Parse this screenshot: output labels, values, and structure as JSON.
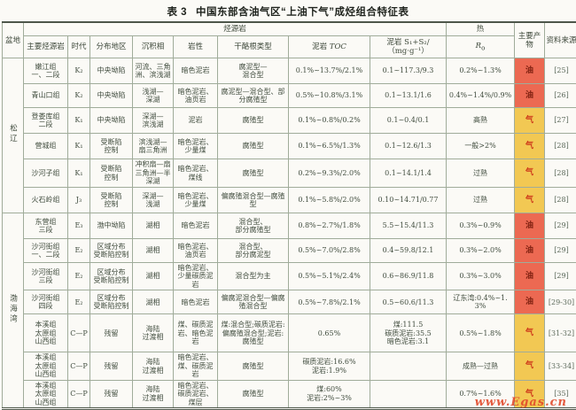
{
  "title": {
    "label": "表 3",
    "text": "中国东部含油气区“上油下气”成烃组合特征表"
  },
  "watermark": "www.Egas.cn",
  "colors": {
    "oil_bg": "#ec6952",
    "gas_bg": "#f2c853",
    "oil_text": "#7e2010",
    "gas_text": "#cc3318",
    "grid_line": "#a0ac9a"
  },
  "table": {
    "group_headers": {
      "source_rock": "烃源岩",
      "thermal": "热"
    },
    "headers": {
      "basin": "盆地",
      "main_source_rock": "主要烃源岩",
      "era": "时代",
      "region": "分布地区",
      "facies": "沉积相",
      "lithology": "岩性",
      "kerogen": "干酪根类型",
      "toc_prefix": "泥岩",
      "toc_unit": "TOC",
      "s1s2_line1": "泥岩 S₁+S₂/",
      "s1s2_line2": "（mg·g⁻¹）",
      "ro_base": "R",
      "ro_sub": "o",
      "product": "主要产物",
      "source": "资料来源"
    },
    "basins": [
      {
        "name": "松辽",
        "start": 0,
        "rowspan": 6
      },
      {
        "name": "渤海湾",
        "start": 6,
        "rowspan": 7
      }
    ],
    "rows": [
      {
        "formation": "嫩江组\n一、二段",
        "era": "K₂",
        "region": "中央坳陷",
        "facies": "河流、三角洲、滨浅湖",
        "lithology": "暗色泥岩",
        "kerogen": "腐泥型—\n混合型",
        "toc": "0.1%~13.7%/2.1%",
        "s1s2": "0.1~117.3/9.3",
        "ro": "0.2%~1.3%",
        "product": "油",
        "product_type": "oil",
        "ref": "[25]"
      },
      {
        "formation": "青山口组",
        "era": "K₂",
        "region": "中央坳陷",
        "facies": "浅湖—\n深湖",
        "lithology": "暗色泥岩、油页岩",
        "kerogen": "腐泥型—混合型、部分腐殖型",
        "toc": "0.5%~10.8%/3.1%",
        "s1s2": "0.1~13.1/1.6",
        "ro": "0.4%~1.4%/0.9%",
        "product": "油",
        "product_type": "oil",
        "ref": "[26]"
      },
      {
        "formation": "登娄库组\n二段",
        "era": "K₁",
        "region": "中央坳陷",
        "facies": "深湖—\n滨浅湖",
        "lithology": "泥岩",
        "kerogen": "腐殖型",
        "toc": "0.1%~0.8%/0.2%",
        "s1s2": "0.1~0.4/0.1",
        "ro": "高熟",
        "product": "气",
        "product_type": "gas",
        "ref": "[27]"
      },
      {
        "formation": "营城组",
        "era": "K₁",
        "region": "受断陷\n控制",
        "facies": "滨浅湖—\n扇三角洲",
        "lithology": "暗色泥岩、少量煤",
        "kerogen": "腐殖型",
        "toc": "0.1%~6.5%/1.3%",
        "s1s2": "0.1~12.6/1.3",
        "ro": "一般>2%",
        "product": "气",
        "product_type": "gas",
        "ref": "[28]"
      },
      {
        "formation": "沙河子组",
        "era": "K₁",
        "region": "受断陷\n控制",
        "facies": "冲积扇—扇三角洲—半深湖",
        "lithology": "暗色泥岩、煤线",
        "kerogen": "腐殖型",
        "toc": "0.2%~9.3%/2.0%",
        "s1s2": "0.1~14.1/1.4",
        "ro": "过熟",
        "product": "气",
        "product_type": "gas",
        "ref": "[28]"
      },
      {
        "formation": "火石岭组",
        "era": "J₃",
        "region": "受断陷\n控制",
        "facies": "深湖—\n浅湖",
        "lithology": "暗色泥岩、少量煤",
        "kerogen": "偏腐殖混合型—腐殖型",
        "toc": "0.1%~5.8%/2.0%",
        "s1s2": "0.10~14.71/0.77",
        "ro": "过熟",
        "product": "气",
        "product_type": "gas",
        "ref": "[28]"
      },
      {
        "formation": "东营组\n三段",
        "era": "E₃",
        "region": "渤中坳陷",
        "facies": "湖相",
        "lithology": "暗色泥岩",
        "kerogen": "混合型、\n部分腐殖型",
        "toc": "0.8%~2.7%/1.8%",
        "s1s2": "5.5~15.4/11.3",
        "ro": "0.3%~0.9%",
        "product": "油",
        "product_type": "oil",
        "ref": "[29]"
      },
      {
        "formation": "沙河街组\n一、二段",
        "era": "E₂",
        "region": "区域分布\n受断陷控制",
        "facies": "湖相",
        "lithology": "暗色泥岩、油页岩",
        "kerogen": "混合型、\n部分腐泥型",
        "toc": "0.5%~7.0%/2.8%",
        "s1s2": "0.4~59.8/12.1",
        "ro": "0.3%~2.0%",
        "product": "油",
        "product_type": "oil",
        "ref": "[29]"
      },
      {
        "formation": "沙河街组\n三段",
        "era": "E₂",
        "region": "区域分布\n受断陷控制",
        "facies": "湖相",
        "lithology": "暗色泥岩、少量碳质泥岩",
        "kerogen": "混合型为主",
        "toc": "0.5%~5.1%/2.4%",
        "s1s2": "0.6~86.9/11.8",
        "ro": "0.3%~3.0%",
        "product": "油",
        "product_type": "oil",
        "ref": "[29]"
      },
      {
        "formation": "沙河街组\n四段",
        "era": "E₂",
        "region": "区域分布\n受断陷控制",
        "facies": "湖相",
        "lithology": "暗色泥岩",
        "kerogen": "偏腐泥混合型—偏腐殖混合型",
        "toc": "0.5%~7.8%/2.1%",
        "s1s2": "0.5~60.6/11.3",
        "ro": "辽东湾:0.4%~1.3%",
        "product": "油",
        "product_type": "oil",
        "ref": "[29-30]"
      },
      {
        "formation": "本溪组\n太原组\n山西组",
        "era": "C—P",
        "region": "残留",
        "facies": "海陆\n过渡相",
        "lithology": "煤、碳质泥岩、暗色泥岩",
        "kerogen": "煤:混合型;碳质泥岩:偏腐殖混合型;泥岩:腐殖型",
        "toc": "0.65%",
        "s1s2": "煤:111.5\n碳质泥岩:35.5\n暗色泥岩:3.1",
        "ro": "0.5%~1.8%",
        "product": "气",
        "product_type": "gas",
        "ref": "[31-32]"
      },
      {
        "formation": "本溪组\n太原组\n山西组",
        "era": "C—P",
        "region": "残留",
        "facies": "海陆\n过渡相",
        "lithology": "暗色泥岩、煤、碳质泥岩",
        "kerogen": "腐殖型",
        "toc": "碳质泥岩:16.6%\n泥岩:1.9%",
        "s1s2": "",
        "ro": "成熟—过熟",
        "product": "气",
        "product_type": "gas",
        "ref": "[33-34]"
      },
      {
        "formation": "本溪组\n太原组\n山西组",
        "era": "C—P",
        "region": "残留",
        "facies": "海陆\n过渡相",
        "lithology": "暗色泥岩、碳质泥岩、煤层",
        "kerogen": "腐殖型",
        "toc": "煤:60%\n泥岩:2%~3%",
        "s1s2": "",
        "ro": "0.7%~1.6%",
        "product": "气",
        "product_type": "gas",
        "ref": "[35]"
      }
    ]
  }
}
